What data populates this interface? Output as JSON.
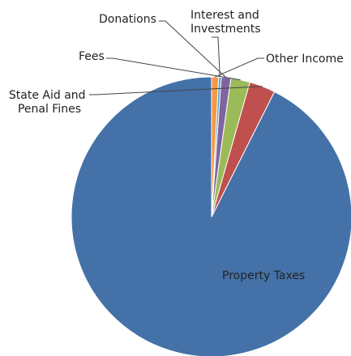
{
  "chart_data": {
    "type": "pie",
    "title": "",
    "slices": [
      {
        "name": "Property Taxes",
        "label_lines": [
          "Property Taxes"
        ],
        "value": 92.6,
        "color": "#4472A8"
      },
      {
        "name": "State Aid and Penal Fines",
        "label_lines": [
          "State Aid and",
          "Penal Fines"
        ],
        "value": 3.0,
        "color": "#C0504D"
      },
      {
        "name": "Fees",
        "label_lines": [
          "Fees"
        ],
        "value": 2.2,
        "color": "#9BBB59"
      },
      {
        "name": "Donations",
        "label_lines": [
          "Donations"
        ],
        "value": 1.1,
        "color": "#8064A2"
      },
      {
        "name": "Interest and Investments",
        "label_lines": [
          "Interest and",
          "Investments"
        ],
        "value": 0.3,
        "color": "#4BACC6"
      },
      {
        "name": "Other Income",
        "label_lines": [
          "Other Income"
        ],
        "value": 0.8,
        "color": "#F79646"
      }
    ],
    "start_angle_deg": 0,
    "direction": "counterclockwise",
    "legend": "none",
    "labels": "outside-with-leaders"
  }
}
